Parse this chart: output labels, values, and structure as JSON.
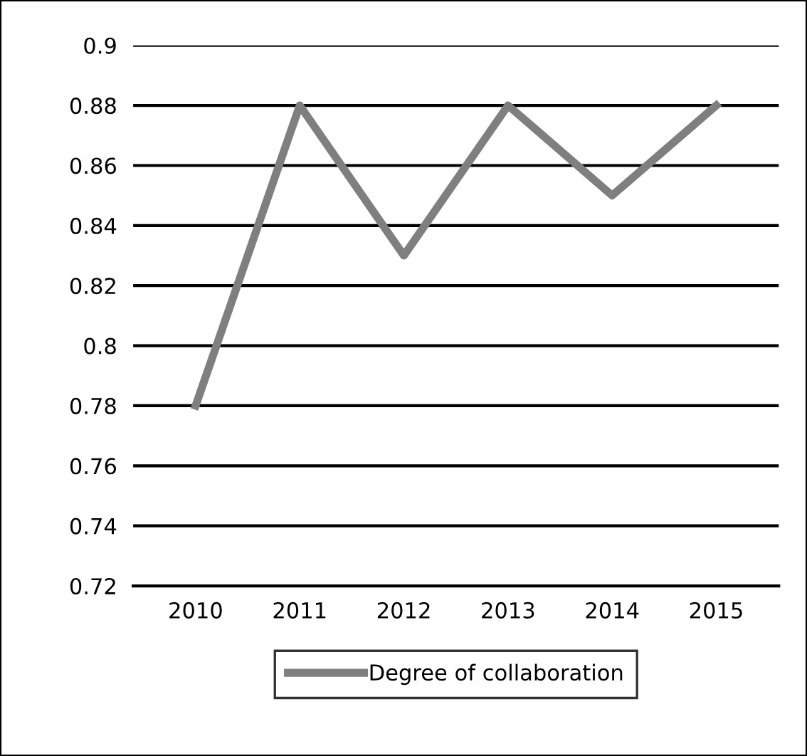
{
  "chart_data": {
    "type": "line",
    "categories": [
      "2010",
      "2011",
      "2012",
      "2013",
      "2014",
      "2015"
    ],
    "series": [
      {
        "name": "Degree of collaboration",
        "color": "#7f7f7f",
        "values": [
          0.78,
          0.88,
          0.83,
          0.88,
          0.85,
          0.88
        ]
      }
    ],
    "ylim": [
      0.72,
      0.9
    ],
    "yticks": [
      0.72,
      0.74,
      0.76,
      0.78,
      0.8,
      0.82,
      0.84,
      0.86,
      0.88,
      0.9
    ],
    "grid": "y",
    "legend": "bottom",
    "marker": "none",
    "line_style": "solid"
  }
}
